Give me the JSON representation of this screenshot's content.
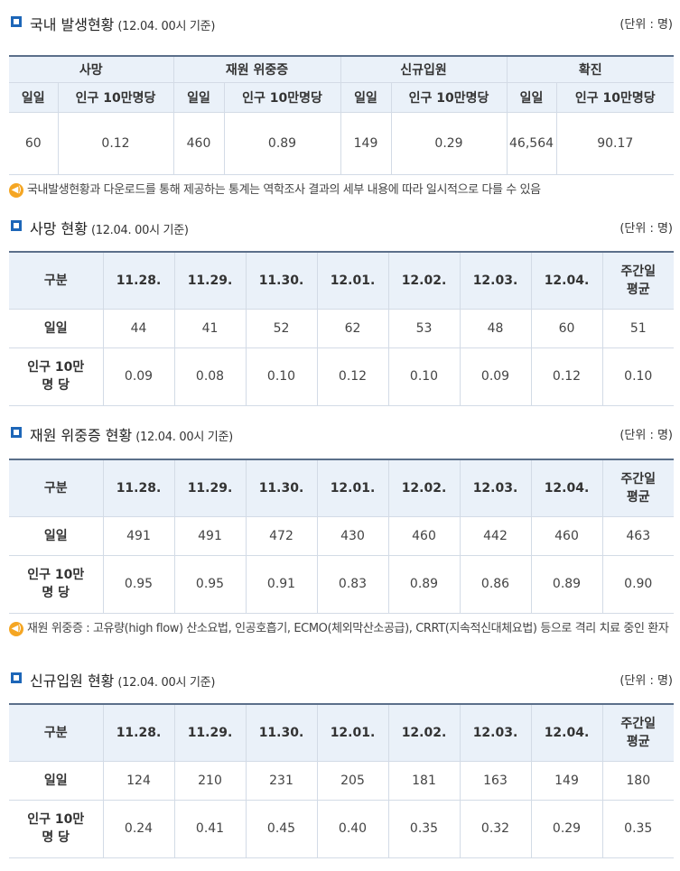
{
  "section1": {
    "title": "국내 발생현황",
    "date": "(12.04. 00시 기준)",
    "unit": "(단위 : 명)",
    "groups": [
      "사망",
      "재원 위중증",
      "신규입원",
      "확진"
    ],
    "subheaders": [
      "일일",
      "인구 10만명당",
      "일일",
      "인구 10만명당",
      "일일",
      "인구 10만명당",
      "일일",
      "인구 10만명당"
    ],
    "values": [
      "60",
      "0.12",
      "460",
      "0.89",
      "149",
      "0.29",
      "46,564",
      "90.17"
    ]
  },
  "note1": "국내발생현황과 다운로드를 통해 제공하는 통계는 역학조사 결과의 세부 내용에 따라 일시적으로 다를 수 있음",
  "section2": {
    "title": "사망 현황",
    "date": "(12.04. 00시 기준)",
    "unit": "(단위 : 명)",
    "header": [
      "구분",
      "11.28.",
      "11.29.",
      "11.30.",
      "12.01.",
      "12.02.",
      "12.03.",
      "12.04.",
      "주간일 평균"
    ],
    "row1_label": "일일",
    "row1": [
      "44",
      "41",
      "52",
      "62",
      "53",
      "48",
      "60",
      "51"
    ],
    "row2_label": "인구 10만 명 당",
    "row2": [
      "0.09",
      "0.08",
      "0.10",
      "0.12",
      "0.10",
      "0.09",
      "0.12",
      "0.10"
    ]
  },
  "section3": {
    "title": "재원 위중증 현황",
    "date": "(12.04. 00시 기준)",
    "unit": "(단위 : 명)",
    "header": [
      "구분",
      "11.28.",
      "11.29.",
      "11.30.",
      "12.01.",
      "12.02.",
      "12.03.",
      "12.04.",
      "주간일 평균"
    ],
    "row1_label": "일일",
    "row1": [
      "491",
      "491",
      "472",
      "430",
      "460",
      "442",
      "460",
      "463"
    ],
    "row2_label": "인구 10만 명 당",
    "row2": [
      "0.95",
      "0.95",
      "0.91",
      "0.83",
      "0.89",
      "0.86",
      "0.89",
      "0.90"
    ]
  },
  "note2": "재원 위중증 : 고유량(high flow) 산소요법, 인공호흡기, ECMO(체외막산소공급), CRRT(지속적신대체요법) 등으로 격리 치료 중인 환자",
  "section4": {
    "title": "신규입원 현황",
    "date": "(12.04. 00시 기준)",
    "unit": "(단위 : 명)",
    "header": [
      "구분",
      "11.28.",
      "11.29.",
      "11.30.",
      "12.01.",
      "12.02.",
      "12.03.",
      "12.04.",
      "주간일 평균"
    ],
    "row1_label": "일일",
    "row1": [
      "124",
      "210",
      "231",
      "205",
      "181",
      "163",
      "149",
      "180"
    ],
    "row2_label": "인구 10만 명 당",
    "row2": [
      "0.24",
      "0.41",
      "0.45",
      "0.40",
      "0.35",
      "0.32",
      "0.29",
      "0.35"
    ]
  },
  "colors": {
    "accent": "#1d66b8",
    "header_bg": "#eaf1f9",
    "note_icon": "#f5a623",
    "border": "#d3dbe6"
  },
  "icons": {
    "section_marker": "square-bullet-icon",
    "note": "speaker-icon"
  }
}
